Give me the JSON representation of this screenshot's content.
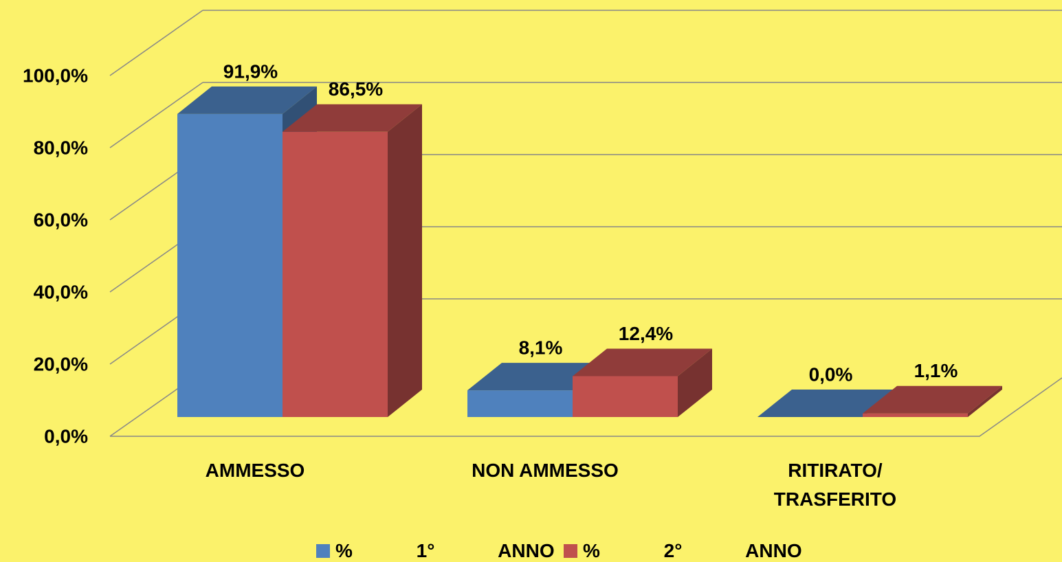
{
  "chart_data": {
    "type": "bar3d",
    "categories": [
      "AMMESSO",
      "NON AMMESSO",
      "RITIRATO/ TRASFERITO"
    ],
    "series": [
      {
        "name": "% 1° ANNO",
        "color": "#4f81bd",
        "values": [
          91.9,
          8.1,
          0.0
        ],
        "value_labels": [
          "91,9%",
          "8,1%",
          "0,0%"
        ]
      },
      {
        "name": "% 2° ANNO",
        "color": "#c0504d",
        "values": [
          86.5,
          12.4,
          1.1
        ],
        "value_labels": [
          "86,5%",
          "12,4%",
          "1,1%"
        ]
      }
    ],
    "ylim": [
      0,
      100
    ],
    "yticks": [
      {
        "value": 0,
        "label": "0,0%"
      },
      {
        "value": 20,
        "label": "20,0%"
      },
      {
        "value": 40,
        "label": "40,0%"
      },
      {
        "value": 60,
        "label": "60,0%"
      },
      {
        "value": 80,
        "label": "80,0%"
      },
      {
        "value": 100,
        "label": "100,0%"
      }
    ],
    "grid": true,
    "legend": "bottom"
  }
}
